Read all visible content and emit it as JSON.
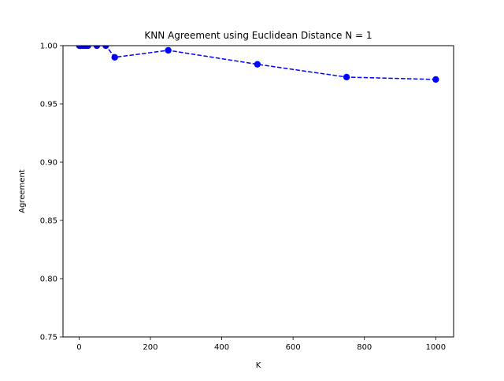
{
  "chart_data": {
    "type": "line",
    "title": "KNN Agreement using Euclidean Distance N = 1",
    "xlabel": "K",
    "ylabel": "Agreement",
    "xlim": [
      -45,
      1050
    ],
    "ylim": [
      0.75,
      1.0
    ],
    "xticks": [
      0,
      200,
      400,
      600,
      800,
      1000
    ],
    "xtick_labels": [
      "0",
      "200",
      "400",
      "600",
      "800",
      "1000"
    ],
    "yticks": [
      0.75,
      0.8,
      0.85,
      0.9,
      0.95,
      1.0
    ],
    "ytick_labels": [
      "0.75",
      "0.80",
      "0.85",
      "0.90",
      "0.95",
      "1.00"
    ],
    "grid": false,
    "series": [
      {
        "color": "#0000ff",
        "line_style": "dashed",
        "marker": "circle",
        "x": [
          1,
          5,
          10,
          15,
          20,
          25,
          50,
          75,
          100,
          250,
          500,
          750,
          1000
        ],
        "y": [
          1.0,
          1.0,
          1.0,
          1.0,
          1.0,
          1.0,
          1.0,
          1.0,
          0.99,
          0.996,
          0.984,
          0.973,
          0.971
        ]
      }
    ]
  }
}
